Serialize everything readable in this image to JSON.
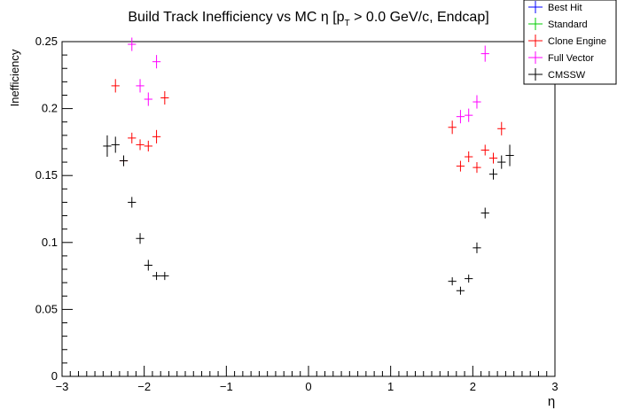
{
  "chart_data": {
    "type": "scatter",
    "title_main": "Build Track Inefficiency vs MC η [p",
    "title_sub": "T",
    "title_rest": " > 0.0 GeV/c, Endcap]",
    "xlabel": "η",
    "ylabel": "Inefficiency",
    "xlim": [
      -3,
      3
    ],
    "ylim": [
      0,
      0.25
    ],
    "xticks": [
      -3,
      -2,
      -1,
      0,
      1,
      2,
      3
    ],
    "xtick_labels": [
      "−3",
      "−2",
      "−1",
      "0",
      "1",
      "2",
      "3"
    ],
    "yticks": [
      0,
      0.05,
      0.1,
      0.15,
      0.2,
      0.25
    ],
    "ytick_labels": [
      "0",
      "0.05",
      "0.1",
      "0.15",
      "0.2",
      "0.25"
    ],
    "legend_position": "top-right",
    "series": [
      {
        "name": "Best Hit",
        "color": "#0000ff",
        "draw_points": false,
        "points": []
      },
      {
        "name": "Standard",
        "color": "#00cc00",
        "draw_points": false,
        "points": [
          {
            "x": -2.35,
            "y": 0.218,
            "yerr": 0.005
          },
          {
            "x": -2.25,
            "y": 0.161,
            "yerr": 0.004
          },
          {
            "x": -2.15,
            "y": 0.178,
            "yerr": 0.004
          },
          {
            "x": -2.05,
            "y": 0.173,
            "yerr": 0.004
          },
          {
            "x": -1.95,
            "y": 0.172,
            "yerr": 0.004
          },
          {
            "x": -1.85,
            "y": 0.179,
            "yerr": 0.005
          },
          {
            "x": -1.75,
            "y": 0.208,
            "yerr": 0.005
          },
          {
            "x": 1.75,
            "y": 0.186,
            "yerr": 0.005
          },
          {
            "x": 1.85,
            "y": 0.157,
            "yerr": 0.004
          },
          {
            "x": 1.95,
            "y": 0.164,
            "yerr": 0.004
          },
          {
            "x": 2.05,
            "y": 0.156,
            "yerr": 0.004
          },
          {
            "x": 2.15,
            "y": 0.169,
            "yerr": 0.004
          },
          {
            "x": 2.25,
            "y": 0.163,
            "yerr": 0.004
          },
          {
            "x": 2.35,
            "y": 0.185,
            "yerr": 0.005
          }
        ]
      },
      {
        "name": "Clone Engine",
        "color": "#ff0000",
        "draw_points": true,
        "points": [
          {
            "x": -2.35,
            "y": 0.217,
            "yerr": 0.005
          },
          {
            "x": -2.25,
            "y": 0.161,
            "yerr": 0.004
          },
          {
            "x": -2.15,
            "y": 0.178,
            "yerr": 0.004
          },
          {
            "x": -2.05,
            "y": 0.173,
            "yerr": 0.004
          },
          {
            "x": -1.95,
            "y": 0.172,
            "yerr": 0.004
          },
          {
            "x": -1.85,
            "y": 0.179,
            "yerr": 0.005
          },
          {
            "x": -1.75,
            "y": 0.208,
            "yerr": 0.005
          },
          {
            "x": 1.75,
            "y": 0.186,
            "yerr": 0.005
          },
          {
            "x": 1.85,
            "y": 0.157,
            "yerr": 0.004
          },
          {
            "x": 1.95,
            "y": 0.164,
            "yerr": 0.004
          },
          {
            "x": 2.05,
            "y": 0.156,
            "yerr": 0.004
          },
          {
            "x": 2.15,
            "y": 0.169,
            "yerr": 0.004
          },
          {
            "x": 2.25,
            "y": 0.163,
            "yerr": 0.004
          },
          {
            "x": 2.35,
            "y": 0.185,
            "yerr": 0.005
          }
        ]
      },
      {
        "name": "Full Vector",
        "color": "#ff00ff",
        "draw_points": true,
        "points": [
          {
            "x": -2.15,
            "y": 0.248,
            "yerr": 0.005
          },
          {
            "x": -2.05,
            "y": 0.217,
            "yerr": 0.005
          },
          {
            "x": -1.95,
            "y": 0.207,
            "yerr": 0.005
          },
          {
            "x": -1.85,
            "y": 0.235,
            "yerr": 0.005
          },
          {
            "x": 1.85,
            "y": 0.194,
            "yerr": 0.005
          },
          {
            "x": 1.95,
            "y": 0.195,
            "yerr": 0.005
          },
          {
            "x": 2.05,
            "y": 0.205,
            "yerr": 0.005
          },
          {
            "x": 2.15,
            "y": 0.241,
            "yerr": 0.006
          }
        ]
      },
      {
        "name": "CMSSW",
        "color": "#000000",
        "draw_points": true,
        "points": [
          {
            "x": -2.45,
            "y": 0.172,
            "yerr": 0.008
          },
          {
            "x": -2.35,
            "y": 0.173,
            "yerr": 0.006
          },
          {
            "x": -2.25,
            "y": 0.161,
            "yerr": 0.004
          },
          {
            "x": -2.15,
            "y": 0.13,
            "yerr": 0.004
          },
          {
            "x": -2.05,
            "y": 0.103,
            "yerr": 0.004
          },
          {
            "x": -1.95,
            "y": 0.083,
            "yerr": 0.004
          },
          {
            "x": -1.85,
            "y": 0.075,
            "yerr": 0.003
          },
          {
            "x": -1.75,
            "y": 0.075,
            "yerr": 0.003
          },
          {
            "x": 1.75,
            "y": 0.071,
            "yerr": 0.003
          },
          {
            "x": 1.85,
            "y": 0.064,
            "yerr": 0.003
          },
          {
            "x": 1.95,
            "y": 0.073,
            "yerr": 0.003
          },
          {
            "x": 2.05,
            "y": 0.096,
            "yerr": 0.004
          },
          {
            "x": 2.15,
            "y": 0.122,
            "yerr": 0.004
          },
          {
            "x": 2.25,
            "y": 0.151,
            "yerr": 0.004
          },
          {
            "x": 2.35,
            "y": 0.16,
            "yerr": 0.005
          },
          {
            "x": 2.45,
            "y": 0.165,
            "yerr": 0.008
          }
        ]
      }
    ]
  }
}
